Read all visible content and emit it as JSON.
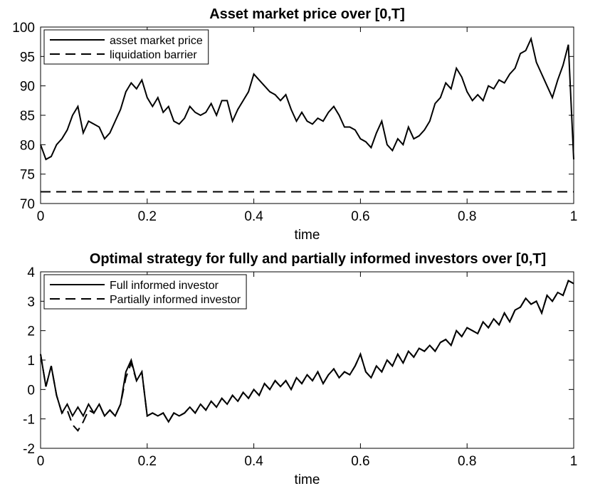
{
  "chart_data": [
    {
      "type": "line",
      "title": "Asset market price over [0,T]",
      "xlabel": "time",
      "xlim": [
        0,
        1
      ],
      "xticks": [
        0,
        0.2,
        0.4,
        0.6,
        0.8,
        1
      ],
      "ylim": [
        70,
        100
      ],
      "yticks": [
        70,
        75,
        80,
        85,
        90,
        95,
        100
      ],
      "legend": "upper left",
      "series": [
        {
          "name": "asset market price",
          "color": "#000000",
          "style": "solid",
          "x": [
            0,
            0.01,
            0.02,
            0.03,
            0.04,
            0.05,
            0.06,
            0.07,
            0.08,
            0.09,
            0.1,
            0.11,
            0.12,
            0.13,
            0.14,
            0.15,
            0.16,
            0.17,
            0.18,
            0.19,
            0.2,
            0.21,
            0.22,
            0.23,
            0.24,
            0.25,
            0.26,
            0.27,
            0.28,
            0.29,
            0.3,
            0.31,
            0.32,
            0.33,
            0.34,
            0.35,
            0.36,
            0.37,
            0.38,
            0.39,
            0.4,
            0.41,
            0.42,
            0.43,
            0.44,
            0.45,
            0.46,
            0.47,
            0.48,
            0.49,
            0.5,
            0.51,
            0.52,
            0.53,
            0.54,
            0.55,
            0.56,
            0.57,
            0.58,
            0.59,
            0.6,
            0.61,
            0.62,
            0.63,
            0.64,
            0.65,
            0.66,
            0.67,
            0.68,
            0.69,
            0.7,
            0.71,
            0.72,
            0.73,
            0.74,
            0.75,
            0.76,
            0.77,
            0.78,
            0.79,
            0.8,
            0.81,
            0.82,
            0.83,
            0.84,
            0.85,
            0.86,
            0.87,
            0.88,
            0.89,
            0.9,
            0.91,
            0.92,
            0.93,
            0.94,
            0.95,
            0.96,
            0.97,
            0.98,
            0.99,
            1
          ],
          "values": [
            80,
            77.5,
            78,
            80,
            81,
            82.5,
            85,
            86.5,
            82,
            84,
            83.5,
            83,
            81,
            82,
            84,
            86,
            89,
            90.5,
            89.5,
            91,
            88,
            86.5,
            88,
            85.5,
            86.5,
            84,
            83.5,
            84.5,
            86.5,
            85.5,
            85,
            85.5,
            87,
            85,
            87.5,
            87.5,
            84,
            86,
            87.5,
            89,
            92,
            91,
            90,
            89,
            88.5,
            87.5,
            88.5,
            86,
            84,
            85.5,
            84,
            83.5,
            84.5,
            84,
            85.5,
            86.5,
            85,
            83,
            83,
            82.5,
            81,
            80.5,
            79.5,
            82,
            84,
            80,
            79,
            81,
            80,
            83,
            81,
            81.5,
            82.5,
            84,
            87,
            88,
            90.5,
            89.5,
            93,
            91.5,
            89,
            87.5,
            88.5,
            87.5,
            90,
            89.5,
            91,
            90.5,
            92,
            93,
            95.5,
            96,
            98,
            94,
            92,
            90,
            88,
            91,
            93.5,
            97,
            77.5
          ]
        },
        {
          "name": "liquidation barrier",
          "color": "#000000",
          "style": "dashed",
          "x": [
            0,
            1
          ],
          "values": [
            72,
            72
          ]
        }
      ]
    },
    {
      "type": "line",
      "title": "Optimal strategy for fully and partially informed investors over [0,T]",
      "xlabel": "time",
      "xlim": [
        0,
        1
      ],
      "xticks": [
        0,
        0.2,
        0.4,
        0.6,
        0.8,
        1
      ],
      "ylim": [
        -2,
        4
      ],
      "yticks": [
        -2,
        -1,
        0,
        1,
        2,
        3,
        4
      ],
      "legend": "upper left",
      "series": [
        {
          "name": "Full informed investor",
          "color": "#000000",
          "style": "solid",
          "x": [
            0,
            0.01,
            0.02,
            0.03,
            0.04,
            0.05,
            0.06,
            0.07,
            0.08,
            0.09,
            0.1,
            0.11,
            0.12,
            0.13,
            0.14,
            0.15,
            0.16,
            0.17,
            0.18,
            0.19,
            0.2,
            0.21,
            0.22,
            0.23,
            0.24,
            0.25,
            0.26,
            0.27,
            0.28,
            0.29,
            0.3,
            0.31,
            0.32,
            0.33,
            0.34,
            0.35,
            0.36,
            0.37,
            0.38,
            0.39,
            0.4,
            0.41,
            0.42,
            0.43,
            0.44,
            0.45,
            0.46,
            0.47,
            0.48,
            0.49,
            0.5,
            0.51,
            0.52,
            0.53,
            0.54,
            0.55,
            0.56,
            0.57,
            0.58,
            0.59,
            0.6,
            0.61,
            0.62,
            0.63,
            0.64,
            0.65,
            0.66,
            0.67,
            0.68,
            0.69,
            0.7,
            0.71,
            0.72,
            0.73,
            0.74,
            0.75,
            0.76,
            0.77,
            0.78,
            0.79,
            0.8,
            0.81,
            0.82,
            0.83,
            0.84,
            0.85,
            0.86,
            0.87,
            0.88,
            0.89,
            0.9,
            0.91,
            0.92,
            0.93,
            0.94,
            0.95,
            0.96,
            0.97,
            0.98,
            0.99,
            1
          ],
          "values": [
            1.2,
            0.1,
            0.8,
            -0.2,
            -0.8,
            -0.5,
            -0.9,
            -0.6,
            -0.9,
            -0.5,
            -0.8,
            -0.5,
            -0.9,
            -0.7,
            -0.9,
            -0.5,
            0.6,
            1.0,
            0.3,
            0.6,
            -0.9,
            -0.8,
            -0.9,
            -0.8,
            -1.1,
            -0.8,
            -0.9,
            -0.8,
            -0.6,
            -0.8,
            -0.5,
            -0.7,
            -0.4,
            -0.6,
            -0.3,
            -0.5,
            -0.2,
            -0.4,
            -0.1,
            -0.3,
            0,
            -0.2,
            0.2,
            0,
            0.3,
            0.1,
            0.3,
            0,
            0.4,
            0.2,
            0.5,
            0.3,
            0.6,
            0.2,
            0.5,
            0.7,
            0.4,
            0.6,
            0.5,
            0.8,
            1.2,
            0.6,
            0.4,
            0.8,
            0.6,
            1.0,
            0.8,
            1.2,
            0.9,
            1.3,
            1.1,
            1.4,
            1.3,
            1.5,
            1.3,
            1.6,
            1.7,
            1.5,
            2.0,
            1.8,
            2.1,
            2.0,
            1.9,
            2.3,
            2.1,
            2.4,
            2.2,
            2.6,
            2.3,
            2.7,
            2.8,
            3.1,
            2.9,
            3.0,
            2.6,
            3.2,
            3.0,
            3.3,
            3.2,
            3.7,
            3.6
          ]
        },
        {
          "name": "Partially informed investor",
          "color": "#000000",
          "style": "dashed",
          "x": [
            0,
            0.01,
            0.02,
            0.03,
            0.04,
            0.05,
            0.06,
            0.07,
            0.08,
            0.09,
            0.1,
            0.11,
            0.12,
            0.13,
            0.14,
            0.15,
            0.16,
            0.17,
            0.18,
            0.19,
            0.2,
            0.21,
            0.22,
            0.23,
            0.24,
            0.25,
            0.26,
            0.27,
            0.28,
            0.29,
            0.3,
            0.31,
            0.32,
            0.33,
            0.34,
            0.35,
            0.36,
            0.37,
            0.38,
            0.39,
            0.4,
            0.41,
            0.42,
            0.43,
            0.44,
            0.45,
            0.46,
            0.47,
            0.48,
            0.49,
            0.5,
            0.51,
            0.52,
            0.53,
            0.54,
            0.55,
            0.56,
            0.57,
            0.58,
            0.59,
            0.6,
            0.61,
            0.62,
            0.63,
            0.64,
            0.65,
            0.66,
            0.67,
            0.68,
            0.69,
            0.7,
            0.71,
            0.72,
            0.73,
            0.74,
            0.75,
            0.76,
            0.77,
            0.78,
            0.79,
            0.8,
            0.81,
            0.82,
            0.83,
            0.84,
            0.85,
            0.86,
            0.87,
            0.88,
            0.89,
            0.9,
            0.91,
            0.92,
            0.93,
            0.94,
            0.95,
            0.96,
            0.97,
            0.98,
            0.99,
            1
          ],
          "values": [
            1.2,
            0.1,
            0.8,
            -0.2,
            -0.8,
            -0.7,
            -1.2,
            -1.4,
            -1.1,
            -0.7,
            -0.8,
            -0.5,
            -0.9,
            -0.7,
            -0.9,
            -0.5,
            0.4,
            0.9,
            0.3,
            0.6,
            -0.9,
            -0.8,
            -0.9,
            -0.8,
            -1.1,
            -0.8,
            -0.9,
            -0.8,
            -0.6,
            -0.8,
            -0.5,
            -0.7,
            -0.4,
            -0.6,
            -0.3,
            -0.5,
            -0.2,
            -0.4,
            -0.1,
            -0.3,
            0,
            -0.2,
            0.2,
            0,
            0.3,
            0.1,
            0.3,
            0,
            0.4,
            0.2,
            0.5,
            0.3,
            0.6,
            0.2,
            0.5,
            0.7,
            0.4,
            0.6,
            0.5,
            0.8,
            1.2,
            0.6,
            0.4,
            0.8,
            0.6,
            1.0,
            0.8,
            1.2,
            0.9,
            1.3,
            1.1,
            1.4,
            1.3,
            1.5,
            1.3,
            1.6,
            1.7,
            1.5,
            2.0,
            1.8,
            2.1,
            2.0,
            1.9,
            2.3,
            2.1,
            2.4,
            2.2,
            2.6,
            2.3,
            2.7,
            2.8,
            3.1,
            2.9,
            3.0,
            2.6,
            3.2,
            3.0,
            3.3,
            3.2,
            3.7,
            3.6
          ]
        }
      ]
    }
  ]
}
